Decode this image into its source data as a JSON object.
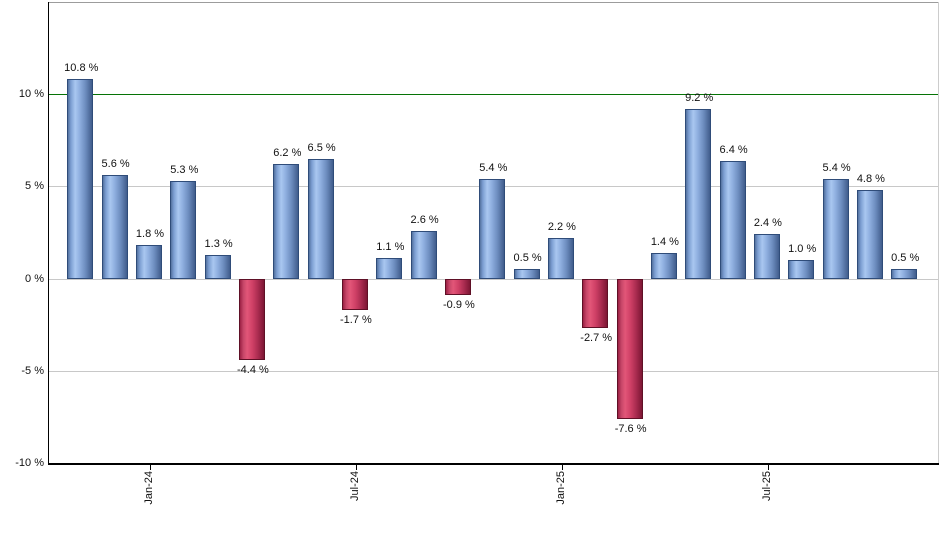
{
  "chart_data": {
    "type": "bar",
    "title": "",
    "xlabel": "",
    "ylabel": "",
    "unit": "%",
    "values": [
      10.8,
      5.6,
      1.8,
      5.3,
      1.3,
      -4.4,
      6.2,
      6.5,
      -1.7,
      1.1,
      2.6,
      -0.9,
      5.4,
      0.5,
      2.2,
      -2.7,
      -7.6,
      1.4,
      9.2,
      6.4,
      2.4,
      1.0,
      5.4,
      4.8,
      0.5
    ],
    "bar_labels": [
      "10.8 %",
      "5.6 %",
      "1.8 %",
      "5.3 %",
      "1.3 %",
      "-4.4 %",
      "6.2 %",
      "6.5 %",
      "-1.7 %",
      "1.1 %",
      "2.6 %",
      "-0.9 %",
      "5.4 %",
      "0.5 %",
      "2.2 %",
      "-2.7 %",
      "-7.6 %",
      "1.4 %",
      "9.2 %",
      "6.4 %",
      "2.4 %",
      "1.0 %",
      "5.4 %",
      "4.8 %",
      "0.5 %"
    ],
    "x_ticks": [
      {
        "label": "Jan-24",
        "bar_index": 2
      },
      {
        "label": "Jul-24",
        "bar_index": 8
      },
      {
        "label": "Jan-25",
        "bar_index": 14
      },
      {
        "label": "Jul-25",
        "bar_index": 20
      }
    ],
    "y_ticks": [
      {
        "value": 10,
        "label": "10 %"
      },
      {
        "value": 5,
        "label": "5 %"
      },
      {
        "value": 0,
        "label": "0 %"
      },
      {
        "value": -5,
        "label": "-5 %"
      },
      {
        "value": -10,
        "label": "-10 %"
      }
    ],
    "ylim": [
      -10,
      15
    ],
    "grid": true,
    "legend_position": "none",
    "threshold_line": {
      "value": 10,
      "color": "#067306"
    },
    "colors": {
      "positive_bar": "#8fb0e0",
      "negative_bar": "#cf4066",
      "positive_bar_border": "#2f4c79",
      "negative_bar_border": "#5f1026",
      "gridline": "#c8c8c8",
      "axis": "#000000",
      "background": "#ffffff",
      "label_text": "#111111"
    }
  }
}
